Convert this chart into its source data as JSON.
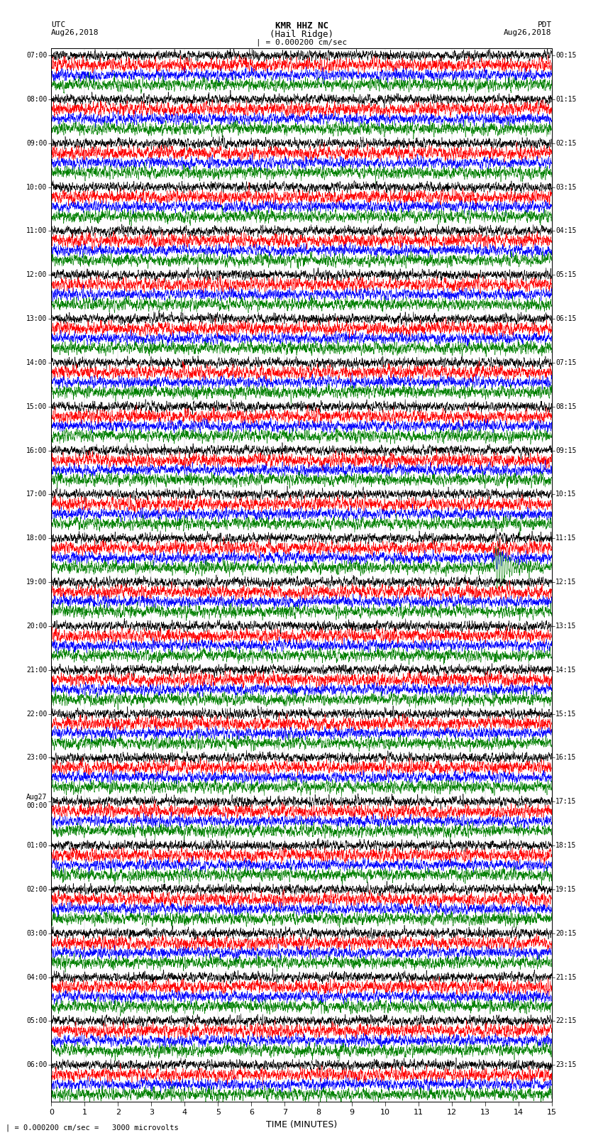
{
  "title_line1": "KMR HHZ NC",
  "title_line2": "(Hail Ridge)",
  "scale_label": "| = 0.000200 cm/sec",
  "footer_label": "| = 0.000200 cm/sec =   3000 microvolts",
  "utc_label": "UTC\nAug26,2018",
  "pdt_label": "PDT\nAug26,2018",
  "xlabel": "TIME (MINUTES)",
  "xlim": [
    0,
    15
  ],
  "xticks": [
    0,
    1,
    2,
    3,
    4,
    5,
    6,
    7,
    8,
    9,
    10,
    11,
    12,
    13,
    14,
    15
  ],
  "left_times": [
    "07:00",
    "08:00",
    "09:00",
    "10:00",
    "11:00",
    "12:00",
    "13:00",
    "14:00",
    "15:00",
    "16:00",
    "17:00",
    "18:00",
    "19:00",
    "20:00",
    "21:00",
    "22:00",
    "23:00",
    "Aug27\n00:00",
    "01:00",
    "02:00",
    "03:00",
    "04:00",
    "05:00",
    "06:00"
  ],
  "right_times": [
    "00:15",
    "01:15",
    "02:15",
    "03:15",
    "04:15",
    "05:15",
    "06:15",
    "07:15",
    "08:15",
    "09:15",
    "10:15",
    "11:15",
    "12:15",
    "13:15",
    "14:15",
    "15:15",
    "16:15",
    "17:15",
    "18:15",
    "19:15",
    "20:15",
    "21:15",
    "22:15",
    "23:15"
  ],
  "colors": [
    "black",
    "red",
    "blue",
    "green"
  ],
  "n_groups": 24,
  "traces_per_group": 4,
  "fig_width": 8.5,
  "fig_height": 16.13,
  "bg_color": "white",
  "earthquake_group": 11,
  "earthquake_trace": 3,
  "earthquake_minute": 13.3
}
